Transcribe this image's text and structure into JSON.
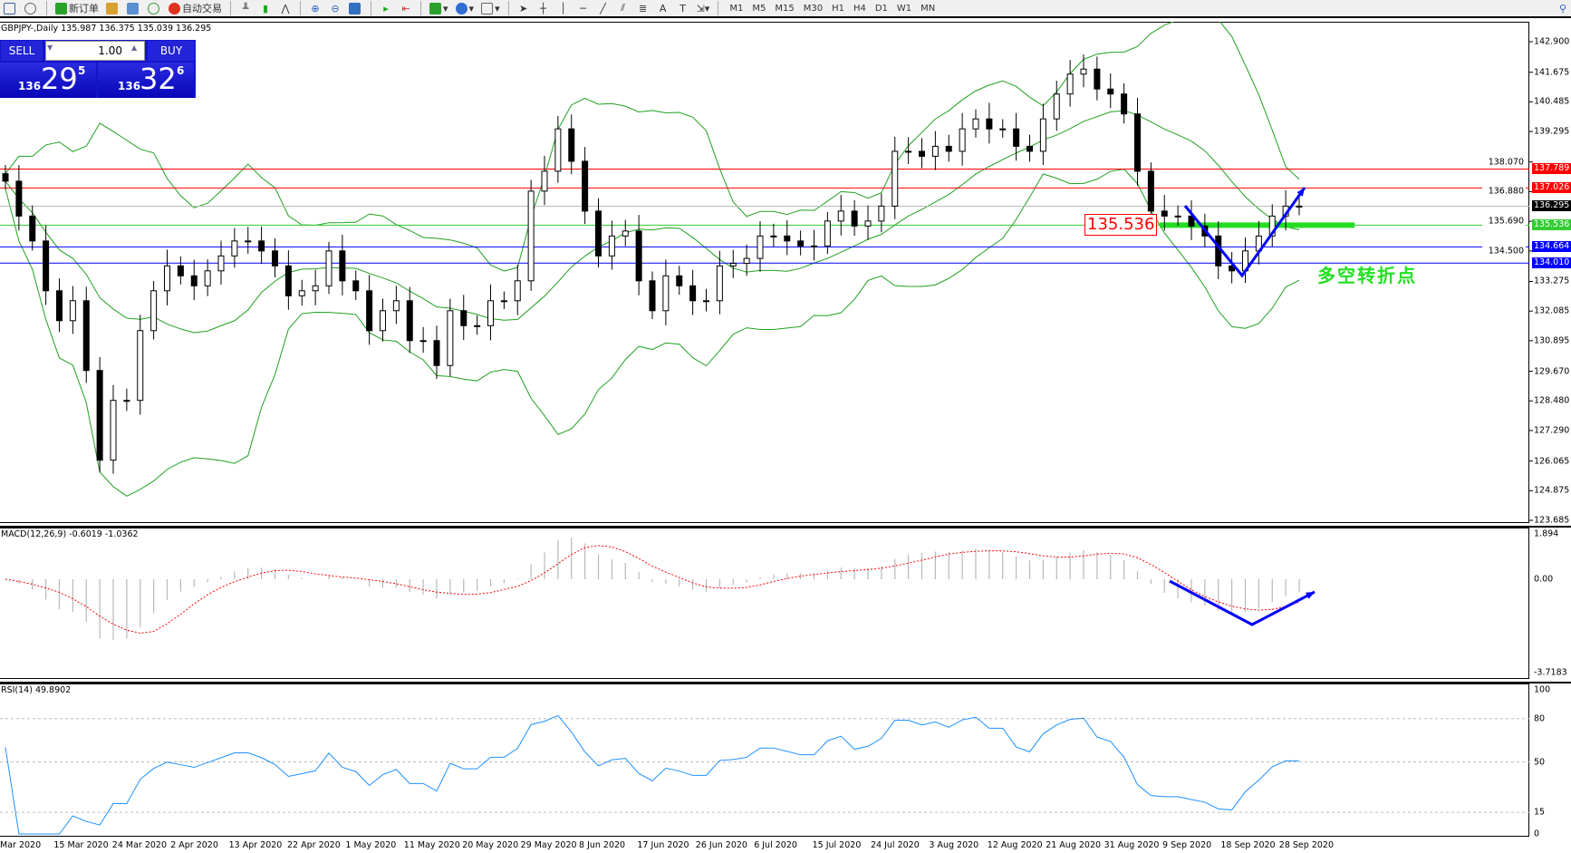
{
  "toolbar": {
    "new_order": "新订单",
    "auto_trading": "自动交易",
    "timeframes": [
      "M1",
      "M5",
      "M15",
      "M30",
      "H1",
      "H4",
      "D1",
      "W1",
      "MN"
    ]
  },
  "chart": {
    "title": "GBPJPY-,Daily  135.987 136.375 135.039 136.295"
  },
  "trade_panel": {
    "sell_label": "SELL",
    "buy_label": "BUY",
    "lot": "1.00",
    "sell_small": "136",
    "sell_big": "29",
    "sell_pip": "5",
    "buy_small": "136",
    "buy_big": "32",
    "buy_pip": "6"
  },
  "annotation": {
    "text": "多空转折点",
    "level_label": "135.536"
  },
  "colors": {
    "bullish_band": "#20a020",
    "red_line": "#ff0000",
    "blue_line": "#0000ff",
    "green_line": "#22dd22",
    "arrow": "#0000ff",
    "rsi": "#1e90ff",
    "macd_signal": "#ff0000"
  },
  "macd": {
    "label": "MACD(12,26,9) -0.6019 -1.0362",
    "axis": [
      "1.894",
      "0.00",
      "-3.7183"
    ]
  },
  "rsi": {
    "label": "RSI(14) 49.8902",
    "axis": [
      "100",
      "80",
      "50",
      "15",
      "0"
    ]
  },
  "chart_data": {
    "type": "candlestick",
    "symbol": "GBPJPY-",
    "timeframe": "Daily",
    "ylim": [
      123.685,
      142.9
    ],
    "y_ticks": [
      "142.900",
      "141.675",
      "140.485",
      "139.295",
      "138.070",
      "136.880",
      "135.690",
      "134.500",
      "133.275",
      "132.085",
      "130.895",
      "129.670",
      "128.480",
      "127.290",
      "126.065",
      "124.875",
      "123.685"
    ],
    "x_ticks": [
      "Mar 2020",
      "15 Mar 2020",
      "24 Mar 2020",
      "2 Apr 2020",
      "13 Apr 2020",
      "22 Apr 2020",
      "1 May 2020",
      "11 May 2020",
      "20 May 2020",
      "29 May 2020",
      "8 Jun 2020",
      "17 Jun 2020",
      "26 Jun 2020",
      "6 Jul 2020",
      "15 Jul 2020",
      "24 Jul 2020",
      "3 Aug 2020",
      "12 Aug 2020",
      "21 Aug 2020",
      "31 Aug 2020",
      "9 Sep 2020",
      "18 Sep 2020",
      "28 Sep 2020"
    ],
    "closes": [
      137.3,
      135.9,
      134.9,
      132.9,
      131.7,
      132.5,
      129.7,
      126.1,
      128.5,
      128.5,
      131.3,
      132.9,
      133.9,
      133.5,
      133.1,
      133.7,
      134.3,
      134.9,
      134.9,
      134.5,
      133.9,
      132.7,
      132.9,
      133.1,
      134.5,
      133.3,
      132.9,
      131.3,
      132.1,
      132.5,
      130.9,
      130.9,
      129.9,
      132.1,
      131.5,
      131.5,
      132.5,
      132.5,
      133.3,
      136.9,
      137.7,
      139.4,
      138.1,
      136.1,
      134.3,
      135.1,
      135.3,
      133.3,
      132.1,
      133.5,
      133.1,
      132.5,
      132.5,
      133.9,
      134.0,
      134.2,
      135.1,
      135.1,
      134.9,
      134.7,
      134.7,
      135.7,
      136.1,
      135.5,
      135.7,
      136.3,
      138.5,
      138.5,
      138.3,
      138.7,
      138.5,
      139.4,
      139.8,
      139.4,
      139.4,
      138.7,
      138.5,
      139.8,
      140.8,
      141.6,
      141.8,
      141.0,
      140.8,
      140.0,
      137.7,
      136.1,
      135.9,
      135.9,
      135.5,
      135.1,
      133.9,
      133.7,
      134.5,
      135.1,
      135.9,
      136.3,
      136.295
    ],
    "horizontal_lines": [
      {
        "price": 137.789,
        "label": "137.789",
        "color": "#ff0000"
      },
      {
        "price": 137.026,
        "label": "137.026",
        "color": "#ff0000"
      },
      {
        "price": 136.295,
        "label": "136.295",
        "color": "#000000"
      },
      {
        "price": 135.536,
        "label": "135.536",
        "color": "#33cc33"
      },
      {
        "price": 134.664,
        "label": "134.664",
        "color": "#0000ff"
      },
      {
        "price": 134.01,
        "label": "134.010",
        "color": "#0000ff"
      }
    ],
    "indicators": [
      "Bollinger Bands",
      "MACD(12,26,9)",
      "RSI(14)"
    ],
    "rsi_levels": [
      80,
      50,
      15
    ]
  }
}
